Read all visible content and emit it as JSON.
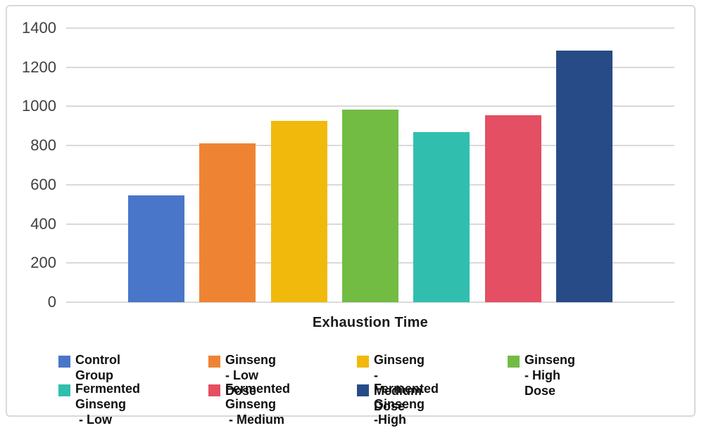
{
  "panel": {
    "background": "#ffffff",
    "border_color": "#d9d9d9"
  },
  "axis": {
    "text_color": "#404040",
    "grid_color": "#d9d9d9"
  },
  "chart_data": {
    "type": "bar",
    "title": "",
    "xlabel": "Exhaustion Time",
    "ylabel": "",
    "ylim": [
      0,
      1400
    ],
    "y_tick_step": 200,
    "y_ticks": [
      1400,
      1200,
      1000,
      800,
      600,
      400,
      200,
      0
    ],
    "grid": true,
    "legend_position": "bottom",
    "categories": [
      "Control Group",
      "Ginseng - Low Dose",
      "Ginseng - Medium Dose",
      "Ginseng - High Dose",
      "Fermented Ginseng - Low Dose",
      "Fermented Ginseng - Medium Dose",
      "Fermented Ginseng -High Dose"
    ],
    "values": [
      545,
      810,
      925,
      985,
      870,
      955,
      1285
    ],
    "colors": [
      "#4a76c9",
      "#ee8433",
      "#f0b90b",
      "#72bc44",
      "#30bfae",
      "#e44f63",
      "#274b87"
    ]
  },
  "legend": {
    "items": [
      {
        "label": "Control Group",
        "color": "#4a76c9"
      },
      {
        "label": "Ginseng - Low Dose",
        "color": "#ee8433"
      },
      {
        "label": "Ginseng - Medium\nDose",
        "color": "#f0b90b"
      },
      {
        "label": "Ginseng - High Dose",
        "color": "#72bc44"
      },
      {
        "label": "Fermented Ginseng\n - Low Dose",
        "color": "#30bfae"
      },
      {
        "label": "Fermented Ginseng\n - Medium Dose",
        "color": "#e44f63"
      },
      {
        "label": "Fermented Ginseng\n-High Dose",
        "color": "#274b87"
      }
    ]
  }
}
